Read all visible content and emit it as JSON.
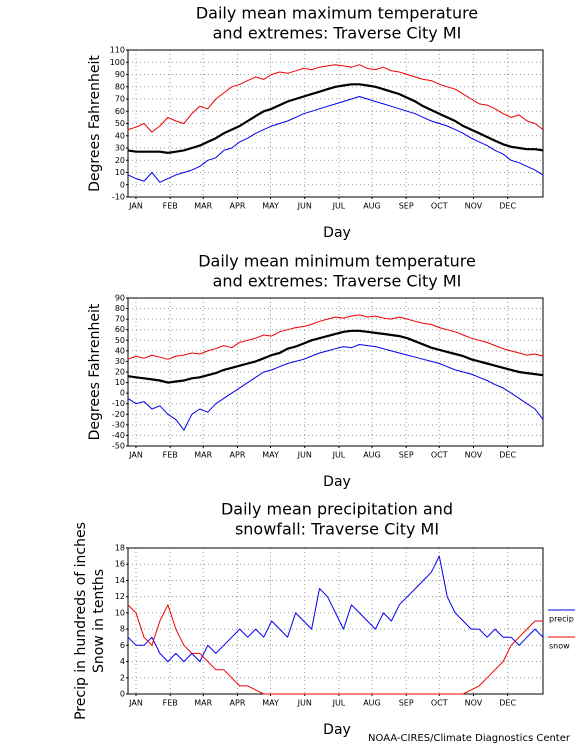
{
  "chart_data": [
    {
      "type": "line",
      "title": [
        "Daily mean maximum temperature",
        "and extremes: Traverse City MI"
      ],
      "xlabel": "Day",
      "ylabel": [
        "Degrees Fahrenheit"
      ],
      "x": [
        1,
        8,
        15,
        22,
        29,
        36,
        43,
        50,
        57,
        64,
        71,
        78,
        85,
        92,
        99,
        106,
        113,
        120,
        127,
        134,
        141,
        148,
        155,
        162,
        169,
        176,
        183,
        190,
        197,
        204,
        211,
        218,
        225,
        232,
        239,
        246,
        253,
        260,
        267,
        274,
        281,
        288,
        295,
        302,
        309,
        316,
        323,
        330,
        337,
        344,
        351,
        358,
        365
      ],
      "xlim": [
        1,
        365
      ],
      "xticks": [
        {
          "value": 8,
          "label": "JAN"
        },
        {
          "value": 38,
          "label": "FEB"
        },
        {
          "value": 67,
          "label": "MAR"
        },
        {
          "value": 97,
          "label": "APR"
        },
        {
          "value": 126,
          "label": "MAY"
        },
        {
          "value": 156,
          "label": "JUN"
        },
        {
          "value": 186,
          "label": "JUL"
        },
        {
          "value": 215,
          "label": "AUG"
        },
        {
          "value": 245,
          "label": "SEP"
        },
        {
          "value": 274,
          "label": "OCT"
        },
        {
          "value": 304,
          "label": "NOV"
        },
        {
          "value": 334,
          "label": "DEC"
        }
      ],
      "ylim": [
        -10,
        110
      ],
      "yticks": [
        -10,
        0,
        10,
        20,
        30,
        40,
        50,
        60,
        70,
        80,
        90,
        100,
        110
      ],
      "grid": true,
      "legend": false,
      "series": [
        {
          "color": "#ee0000",
          "width": 1,
          "values": [
            45,
            47,
            50,
            43,
            48,
            55,
            52,
            50,
            58,
            64,
            62,
            70,
            75,
            80,
            82,
            85,
            88,
            86,
            90,
            92,
            91,
            93,
            95,
            94,
            96,
            97,
            98,
            97,
            96,
            98,
            95,
            94,
            96,
            93,
            92,
            90,
            88,
            86,
            85,
            82,
            80,
            78,
            74,
            70,
            66,
            65,
            62,
            58,
            55,
            57,
            52,
            50,
            45
          ]
        },
        {
          "color": "#0000ee",
          "width": 1,
          "values": [
            8,
            5,
            3,
            10,
            2,
            5,
            8,
            10,
            12,
            15,
            20,
            22,
            28,
            30,
            35,
            38,
            42,
            45,
            48,
            50,
            52,
            55,
            58,
            60,
            62,
            64,
            66,
            68,
            70,
            72,
            70,
            68,
            66,
            64,
            62,
            60,
            58,
            55,
            52,
            50,
            48,
            45,
            42,
            38,
            35,
            32,
            28,
            25,
            20,
            18,
            15,
            12,
            8
          ]
        },
        {
          "color": "#000000",
          "width": 2.2,
          "values": [
            28,
            27,
            27,
            27,
            27,
            26,
            27,
            28,
            30,
            32,
            35,
            38,
            42,
            45,
            48,
            52,
            56,
            60,
            62,
            65,
            68,
            70,
            72,
            74,
            76,
            78,
            80,
            81,
            82,
            82,
            81,
            80,
            78,
            76,
            74,
            71,
            68,
            64,
            61,
            58,
            55,
            52,
            48,
            45,
            42,
            39,
            36,
            33,
            31,
            30,
            29,
            29,
            28
          ]
        }
      ]
    },
    {
      "type": "line",
      "title": [
        "Daily mean minimum temperature",
        "and extremes: Traverse City MI"
      ],
      "xlabel": "Day",
      "ylabel": [
        "Degrees Fahrenheit"
      ],
      "x": [
        1,
        8,
        15,
        22,
        29,
        36,
        43,
        50,
        57,
        64,
        71,
        78,
        85,
        92,
        99,
        106,
        113,
        120,
        127,
        134,
        141,
        148,
        155,
        162,
        169,
        176,
        183,
        190,
        197,
        204,
        211,
        218,
        225,
        232,
        239,
        246,
        253,
        260,
        267,
        274,
        281,
        288,
        295,
        302,
        309,
        316,
        323,
        330,
        337,
        344,
        351,
        358,
        365
      ],
      "xlim": [
        1,
        365
      ],
      "xticks": [
        {
          "value": 8,
          "label": "JAN"
        },
        {
          "value": 38,
          "label": "FEB"
        },
        {
          "value": 67,
          "label": "MAR"
        },
        {
          "value": 97,
          "label": "APR"
        },
        {
          "value": 126,
          "label": "MAY"
        },
        {
          "value": 156,
          "label": "JUN"
        },
        {
          "value": 186,
          "label": "JUL"
        },
        {
          "value": 215,
          "label": "AUG"
        },
        {
          "value": 245,
          "label": "SEP"
        },
        {
          "value": 274,
          "label": "OCT"
        },
        {
          "value": 304,
          "label": "NOV"
        },
        {
          "value": 334,
          "label": "DEC"
        }
      ],
      "ylim": [
        -50,
        90
      ],
      "yticks": [
        -50,
        -40,
        -30,
        -20,
        -10,
        0,
        10,
        20,
        30,
        40,
        50,
        60,
        70,
        80,
        90
      ],
      "grid": true,
      "legend": false,
      "series": [
        {
          "color": "#ee0000",
          "width": 1,
          "values": [
            32,
            35,
            33,
            36,
            34,
            32,
            35,
            36,
            38,
            37,
            40,
            42,
            45,
            43,
            48,
            50,
            52,
            55,
            54,
            58,
            60,
            62,
            63,
            65,
            68,
            70,
            72,
            71,
            73,
            74,
            72,
            73,
            71,
            70,
            72,
            70,
            68,
            66,
            65,
            62,
            60,
            58,
            55,
            52,
            50,
            48,
            45,
            42,
            40,
            38,
            36,
            37,
            35
          ]
        },
        {
          "color": "#0000ee",
          "width": 1,
          "values": [
            -5,
            -10,
            -8,
            -15,
            -12,
            -20,
            -25,
            -35,
            -20,
            -15,
            -18,
            -10,
            -5,
            0,
            5,
            10,
            15,
            20,
            22,
            25,
            28,
            30,
            32,
            35,
            38,
            40,
            42,
            44,
            43,
            46,
            45,
            44,
            42,
            40,
            38,
            36,
            34,
            32,
            30,
            28,
            25,
            22,
            20,
            18,
            15,
            12,
            8,
            5,
            0,
            -5,
            -10,
            -15,
            -25
          ]
        },
        {
          "color": "#000000",
          "width": 2.2,
          "values": [
            16,
            15,
            14,
            13,
            12,
            10,
            11,
            12,
            14,
            15,
            17,
            19,
            22,
            24,
            26,
            28,
            30,
            33,
            36,
            38,
            42,
            44,
            47,
            50,
            52,
            54,
            56,
            58,
            59,
            59,
            58,
            57,
            56,
            55,
            54,
            52,
            49,
            46,
            43,
            41,
            39,
            37,
            35,
            32,
            30,
            28,
            26,
            24,
            22,
            20,
            19,
            18,
            17
          ]
        }
      ]
    },
    {
      "type": "line",
      "title": [
        "Daily mean precipitation and",
        "snowfall: Traverse City MI"
      ],
      "xlabel": "Day",
      "ylabel": [
        "Precip in hundreds of inches",
        "Snow in tenths"
      ],
      "x": [
        1,
        8,
        15,
        22,
        29,
        36,
        43,
        50,
        57,
        64,
        71,
        78,
        85,
        92,
        99,
        106,
        113,
        120,
        127,
        134,
        141,
        148,
        155,
        162,
        169,
        176,
        183,
        190,
        197,
        204,
        211,
        218,
        225,
        232,
        239,
        246,
        253,
        260,
        267,
        274,
        281,
        288,
        295,
        302,
        309,
        316,
        323,
        330,
        337,
        344,
        351,
        358,
        365
      ],
      "xlim": [
        1,
        365
      ],
      "xticks": [
        {
          "value": 8,
          "label": "JAN"
        },
        {
          "value": 38,
          "label": "FEB"
        },
        {
          "value": 67,
          "label": "MAR"
        },
        {
          "value": 97,
          "label": "APR"
        },
        {
          "value": 126,
          "label": "MAY"
        },
        {
          "value": 156,
          "label": "JUN"
        },
        {
          "value": 186,
          "label": "JUL"
        },
        {
          "value": 215,
          "label": "AUG"
        },
        {
          "value": 245,
          "label": "SEP"
        },
        {
          "value": 274,
          "label": "OCT"
        },
        {
          "value": 304,
          "label": "NOV"
        },
        {
          "value": 334,
          "label": "DEC"
        }
      ],
      "ylim": [
        0,
        18
      ],
      "yticks": [
        0,
        2,
        4,
        6,
        8,
        10,
        12,
        14,
        16,
        18
      ],
      "grid": true,
      "legend": "right",
      "series": [
        {
          "name": "precip",
          "color": "#0000ee",
          "width": 1,
          "values": [
            7,
            6,
            6,
            7,
            5,
            4,
            5,
            4,
            5,
            4,
            6,
            5,
            6,
            7,
            8,
            7,
            8,
            7,
            9,
            8,
            7,
            10,
            9,
            8,
            13,
            12,
            10,
            8,
            11,
            10,
            9,
            8,
            10,
            9,
            11,
            12,
            13,
            14,
            15,
            17,
            12,
            10,
            9,
            8,
            8,
            7,
            8,
            7,
            7,
            6,
            7,
            8,
            7
          ]
        },
        {
          "name": "snow",
          "color": "#ee0000",
          "width": 1,
          "values": [
            11,
            10,
            7,
            6,
            9,
            11,
            8,
            6,
            5,
            5,
            4,
            3,
            3,
            2,
            1,
            1,
            0.5,
            0,
            0,
            0,
            0,
            0,
            0,
            0,
            0,
            0,
            0,
            0,
            0,
            0,
            0,
            0,
            0,
            0,
            0,
            0,
            0,
            0,
            0,
            0,
            0,
            0,
            0,
            0.5,
            1,
            2,
            3,
            4,
            6,
            7,
            8,
            9,
            9
          ]
        }
      ]
    }
  ],
  "footer": "NOAA-CIRES/Climate Diagnostics Center"
}
